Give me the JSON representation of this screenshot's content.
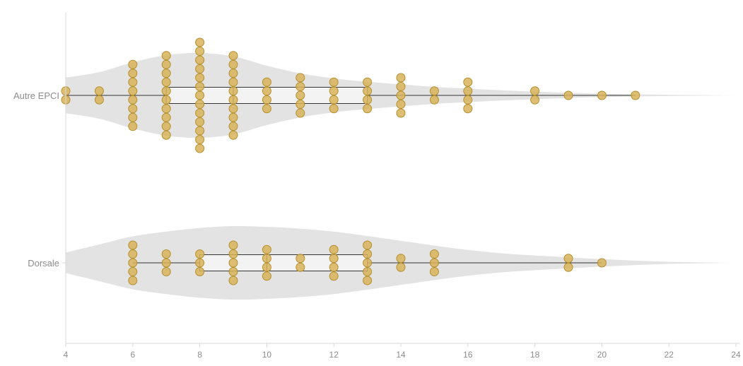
{
  "colors": {
    "violin": "#e3e3e3",
    "point_fill": "#d8b35b",
    "point_stroke": "#b48f2c",
    "box_fill": "#f6f6f6",
    "box_stroke": "#333333",
    "axis": "#d9d9d9",
    "tick_text": "#8c8c8c",
    "category_text": "#8c8c8c"
  },
  "chart_data": {
    "type": "violin",
    "xlim": [
      4,
      24
    ],
    "xticks": [
      4,
      6,
      8,
      10,
      12,
      14,
      16,
      18,
      20,
      22,
      24
    ],
    "xtick_labels": [
      "4",
      "6",
      "8",
      "10",
      "12",
      "14",
      "16",
      "18",
      "20",
      "22",
      "24"
    ],
    "grid": false,
    "categories": [
      {
        "label": "Autre EPCI",
        "box": {
          "whisker_low": 4,
          "q1": 7,
          "median": 9,
          "q3": 13,
          "whisker_high": 21
        },
        "density": [
          [
            4,
            0.42
          ],
          [
            5,
            0.55
          ],
          [
            6,
            0.78
          ],
          [
            7,
            0.95
          ],
          [
            8,
            1.0
          ],
          [
            9,
            0.92
          ],
          [
            10,
            0.7
          ],
          [
            11,
            0.52
          ],
          [
            12,
            0.4
          ],
          [
            13,
            0.32
          ],
          [
            14,
            0.26
          ],
          [
            15,
            0.2
          ],
          [
            16,
            0.16
          ],
          [
            17,
            0.12
          ],
          [
            18,
            0.09
          ],
          [
            19,
            0.06
          ],
          [
            20,
            0.04
          ],
          [
            21,
            0.025
          ],
          [
            22,
            0.015
          ],
          [
            23,
            0.007
          ],
          [
            24,
            0.0
          ]
        ],
        "points": [
          {
            "x": 4,
            "count": 2
          },
          {
            "x": 5,
            "count": 2
          },
          {
            "x": 6,
            "count": 8
          },
          {
            "x": 7,
            "count": 10
          },
          {
            "x": 8,
            "count": 13
          },
          {
            "x": 9,
            "count": 10
          },
          {
            "x": 10,
            "count": 4
          },
          {
            "x": 11,
            "count": 5
          },
          {
            "x": 12,
            "count": 4
          },
          {
            "x": 13,
            "count": 4
          },
          {
            "x": 14,
            "count": 5
          },
          {
            "x": 15,
            "count": 2
          },
          {
            "x": 16,
            "count": 4
          },
          {
            "x": 18,
            "count": 2
          },
          {
            "x": 19,
            "count": 1
          },
          {
            "x": 20,
            "count": 1
          },
          {
            "x": 21,
            "count": 1
          }
        ]
      },
      {
        "label": "Dorsale",
        "box": {
          "whisker_low": 6,
          "q1": 8,
          "median": 10,
          "q3": 13,
          "whisker_high": 20
        },
        "density": [
          [
            4,
            0.28
          ],
          [
            5,
            0.5
          ],
          [
            6,
            0.72
          ],
          [
            7,
            0.85
          ],
          [
            8,
            0.95
          ],
          [
            9,
            1.0
          ],
          [
            10,
            0.98
          ],
          [
            11,
            0.93
          ],
          [
            12,
            0.85
          ],
          [
            13,
            0.73
          ],
          [
            14,
            0.6
          ],
          [
            15,
            0.47
          ],
          [
            16,
            0.35
          ],
          [
            17,
            0.26
          ],
          [
            18,
            0.2
          ],
          [
            19,
            0.15
          ],
          [
            20,
            0.1
          ],
          [
            21,
            0.06
          ],
          [
            22,
            0.03
          ],
          [
            23,
            0.012
          ],
          [
            24,
            0.0
          ]
        ],
        "points": [
          {
            "x": 6,
            "count": 5
          },
          {
            "x": 7,
            "count": 3
          },
          {
            "x": 8,
            "count": 3
          },
          {
            "x": 9,
            "count": 5
          },
          {
            "x": 10,
            "count": 4
          },
          {
            "x": 11,
            "count": 2
          },
          {
            "x": 12,
            "count": 4
          },
          {
            "x": 13,
            "count": 5
          },
          {
            "x": 14,
            "count": 2
          },
          {
            "x": 15,
            "count": 3
          },
          {
            "x": 19,
            "count": 2
          },
          {
            "x": 20,
            "count": 1
          }
        ]
      }
    ]
  }
}
